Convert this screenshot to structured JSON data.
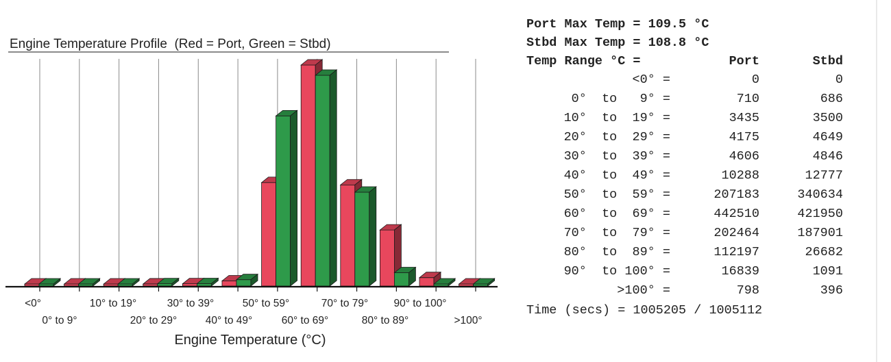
{
  "chart_data": {
    "type": "bar",
    "title": "Engine Temperature Profile  (Red = Port, Green = Stbd)",
    "xlabel": "Engine Temperature (°C)",
    "categories": [
      "<0°",
      "0° to  9°",
      "10° to 19°",
      "20° to 29°",
      "30° to 39°",
      "40° to 49°",
      "50° to 59°",
      "60° to 69°",
      "70° to 79°",
      "80° to 89°",
      "90° to 100°",
      ">100°"
    ],
    "series": [
      {
        "name": "Port",
        "color": "#e8475d",
        "values": [
          0,
          710,
          3435,
          4175,
          4606,
          10288,
          207183,
          442510,
          202464,
          112197,
          16839,
          798
        ]
      },
      {
        "name": "Stbd",
        "color": "#2e9a4a",
        "values": [
          0,
          686,
          3500,
          4649,
          4846,
          12777,
          340634,
          421950,
          187901,
          26682,
          1091,
          396
        ]
      }
    ],
    "ylim": [
      0,
      442510
    ],
    "grid": true,
    "legend": "none"
  },
  "table": {
    "port_max_line": "Port Max Temp = 109.5 °C",
    "stbd_max_line": "Stbd Max Temp = 108.8 °C",
    "header": {
      "range": "Temp Range °C =",
      "port": "Port",
      "stbd": "Stbd"
    },
    "rows": [
      {
        "range": "<0° =",
        "port": "0",
        "stbd": "0"
      },
      {
        "range": "0°  to   9° =",
        "port": "710",
        "stbd": "686"
      },
      {
        "range": "10°  to  19° =",
        "port": "3435",
        "stbd": "3500"
      },
      {
        "range": "20°  to  29° =",
        "port": "4175",
        "stbd": "4649"
      },
      {
        "range": "30°  to  39° =",
        "port": "4606",
        "stbd": "4846"
      },
      {
        "range": "40°  to  49° =",
        "port": "10288",
        "stbd": "12777"
      },
      {
        "range": "50°  to  59° =",
        "port": "207183",
        "stbd": "340634"
      },
      {
        "range": "60°  to  69° =",
        "port": "442510",
        "stbd": "421950"
      },
      {
        "range": "70°  to  79° =",
        "port": "202464",
        "stbd": "187901"
      },
      {
        "range": "80°  to  89° =",
        "port": "112197",
        "stbd": "26682"
      },
      {
        "range": "90°  to 100° =",
        "port": "16839",
        "stbd": "1091"
      },
      {
        "range": ">100° =",
        "port": "798",
        "stbd": "396"
      }
    ],
    "time_line": "Time (secs) = 1005205 / 1005112"
  }
}
